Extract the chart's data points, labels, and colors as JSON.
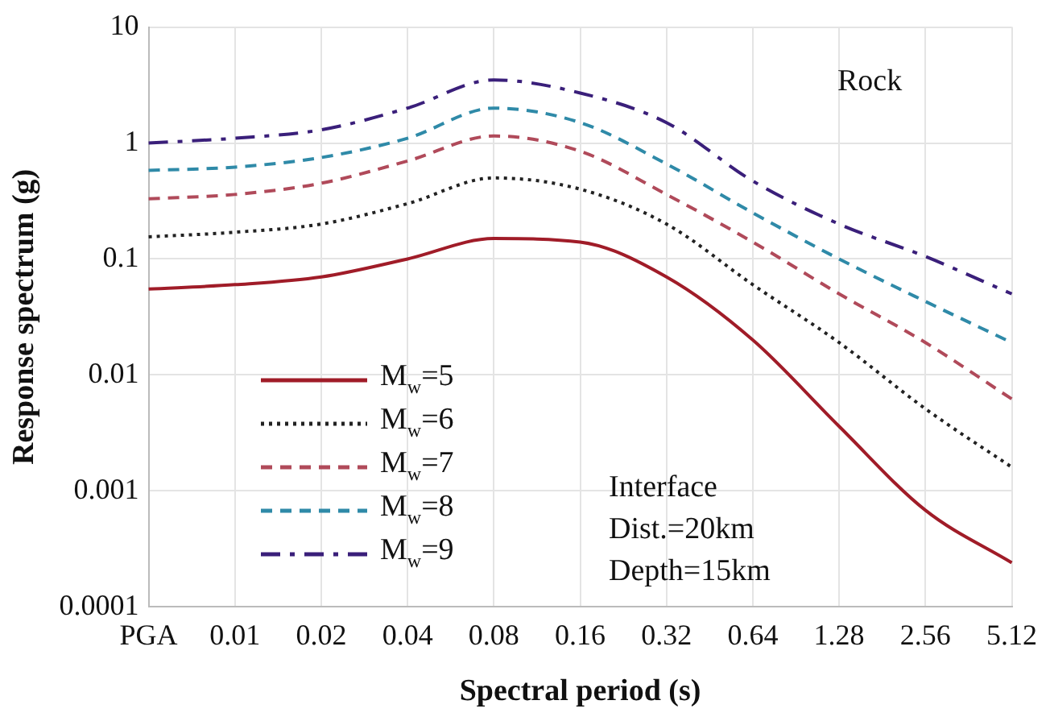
{
  "chart_data": {
    "type": "line",
    "xlabel": "Spectral period (s)",
    "ylabel": "Response spectrum (g)",
    "categories": [
      "PGA",
      "0.01",
      "0.02",
      "0.04",
      "0.08",
      "0.16",
      "0.32",
      "0.64",
      "1.28",
      "2.56",
      "5.12"
    ],
    "series": [
      {
        "name": "M$_{w}$=5",
        "color": "#a01c28",
        "line_style": "solid",
        "values": [
          0.055,
          0.06,
          0.07,
          0.1,
          0.15,
          0.14,
          0.07,
          0.02,
          0.0036,
          0.00068,
          0.00024
        ]
      },
      {
        "name": "M$_{w}$=6",
        "color": "#222222",
        "line_style": "dotted",
        "values": [
          0.155,
          0.17,
          0.2,
          0.3,
          0.5,
          0.4,
          0.2,
          0.06,
          0.019,
          0.0051,
          0.0016
        ]
      },
      {
        "name": "M$_{w}$=7",
        "color": "#b04a5a",
        "line_style": "dashed",
        "values": [
          0.33,
          0.36,
          0.45,
          0.7,
          1.15,
          0.85,
          0.36,
          0.14,
          0.05,
          0.019,
          0.0062
        ]
      },
      {
        "name": "M$_{w}$=8",
        "color": "#2f8aa8",
        "line_style": "dashed",
        "values": [
          0.58,
          0.62,
          0.75,
          1.1,
          2.0,
          1.5,
          0.66,
          0.25,
          0.1,
          0.043,
          0.019
        ]
      },
      {
        "name": "M$_{w}$=9",
        "color": "#3a1f7a",
        "line_style": "dashdot",
        "values": [
          1.0,
          1.1,
          1.3,
          2.0,
          3.5,
          2.7,
          1.5,
          0.47,
          0.2,
          0.105,
          0.05
        ]
      }
    ],
    "log": "y",
    "ylim": [
      0.0001,
      10
    ],
    "yticks": [
      0.0001,
      0.001,
      0.01,
      0.1,
      1,
      10
    ],
    "grid": true,
    "legend": "left",
    "marker": "none",
    "annotations": [
      "Rock",
      "Interface",
      "Dist.=20km",
      "Depth=15km"
    ]
  }
}
